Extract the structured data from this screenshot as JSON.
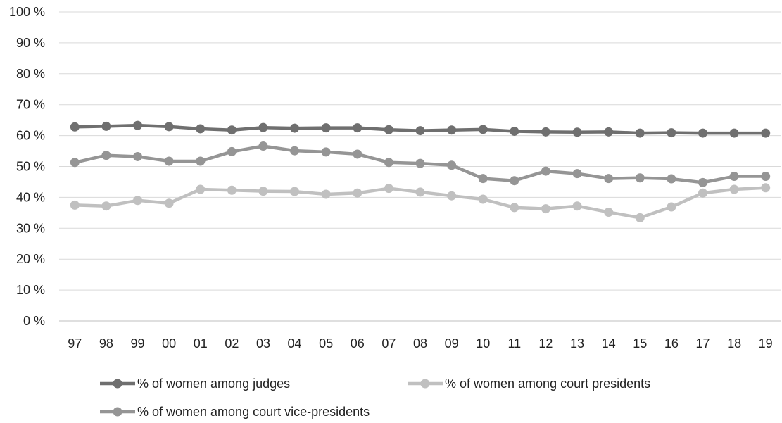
{
  "chart_data": {
    "type": "line",
    "title": "",
    "xlabel": "",
    "ylabel": "",
    "categories": [
      "97",
      "98",
      "99",
      "00",
      "01",
      "02",
      "03",
      "04",
      "05",
      "06",
      "07",
      "08",
      "09",
      "10",
      "11",
      "12",
      "13",
      "14",
      "15",
      "16",
      "17",
      "18",
      "19"
    ],
    "ylim": [
      0,
      100
    ],
    "yticks": [
      "0 %",
      "10 %",
      "20 %",
      "30 %",
      "40 %",
      "50 %",
      "60 %",
      "70 %",
      "80 %",
      "90 %",
      "100 %"
    ],
    "grid": true,
    "legend_position": "bottom",
    "series": [
      {
        "name": "% of women among judges",
        "color": "#6f6f6f",
        "values": [
          62.8,
          63.0,
          63.3,
          62.9,
          62.2,
          61.8,
          62.6,
          62.4,
          62.5,
          62.5,
          61.9,
          61.6,
          61.8,
          62.0,
          61.4,
          61.2,
          61.1,
          61.2,
          60.8,
          60.9,
          60.8,
          60.8,
          60.8
        ]
      },
      {
        "name": "% of women among court presidents",
        "color": "#c0c0c0",
        "values": [
          37.5,
          37.2,
          39.0,
          38.1,
          42.6,
          42.3,
          42.0,
          41.9,
          41.0,
          41.4,
          42.9,
          41.7,
          40.5,
          39.4,
          36.7,
          36.3,
          37.2,
          35.2,
          33.4,
          36.9,
          41.4,
          42.6,
          43.1
        ]
      },
      {
        "name": "% of women among court vice-presidents",
        "color": "#959595",
        "values": [
          51.3,
          53.6,
          53.2,
          51.7,
          51.7,
          54.8,
          56.6,
          55.1,
          54.7,
          54.0,
          51.3,
          51.0,
          50.4,
          46.1,
          45.4,
          48.5,
          47.7,
          46.1,
          46.3,
          46.0,
          44.8,
          46.8,
          46.8
        ]
      }
    ]
  }
}
